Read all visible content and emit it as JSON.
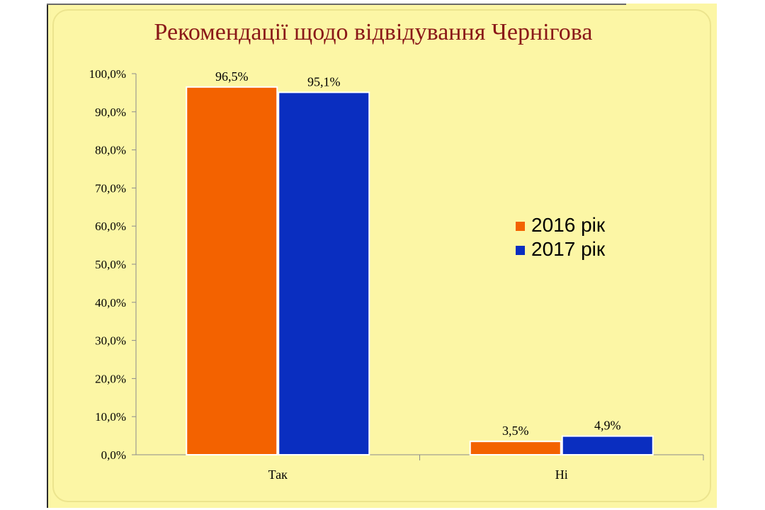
{
  "chart_data": {
    "type": "bar",
    "title": "Рекомендації щодо відвідування Чернігова",
    "categories": [
      "Так",
      "Ні"
    ],
    "series": [
      {
        "name": "2016 рік",
        "values": [
          96.5,
          3.5
        ],
        "labels": [
          "96,5%",
          "3,5%"
        ],
        "color": "#f36200"
      },
      {
        "name": "2017 рік",
        "values": [
          95.1,
          4.9
        ],
        "labels": [
          "95,1%",
          "4,9%"
        ],
        "color": "#0a2ec0"
      }
    ],
    "ylim": [
      0,
      100
    ],
    "yticks": [
      0,
      10,
      20,
      30,
      40,
      50,
      60,
      70,
      80,
      90,
      100
    ],
    "ytick_labels": [
      "0,0%",
      "10,0%",
      "20,0%",
      "30,0%",
      "40,0%",
      "50,0%",
      "60,0%",
      "70,0%",
      "80,0%",
      "90,0%",
      "100,0%"
    ],
    "legend_position": "right",
    "grid": false,
    "xlabel": "",
    "ylabel": ""
  }
}
